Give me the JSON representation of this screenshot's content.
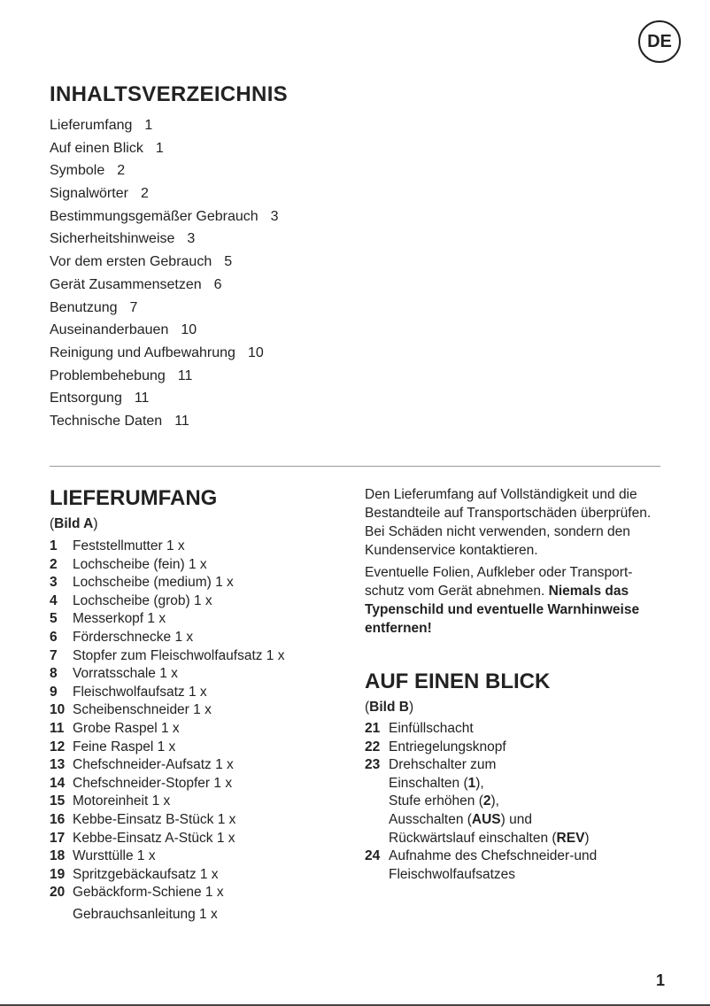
{
  "lang_badge": "DE",
  "toc": {
    "title": "INHALTSVERZEICHNIS",
    "items": [
      {
        "label": "Lieferumfang",
        "page": "1"
      },
      {
        "label": "Auf einen Blick",
        "page": "1"
      },
      {
        "label": "Symbole",
        "page": "2"
      },
      {
        "label": "Signalwörter",
        "page": "2"
      },
      {
        "label": "Bestimmungsgemäßer Gebrauch",
        "page": "3"
      },
      {
        "label": "Sicherheitshinweise",
        "page": "3"
      },
      {
        "label": "Vor dem ersten Gebrauch",
        "page": "5"
      },
      {
        "label": "Gerät Zusammensetzen",
        "page": "6"
      },
      {
        "label": "Benutzung",
        "page": "7"
      },
      {
        "label": "Auseinanderbauen",
        "page": "10"
      },
      {
        "label": "Reinigung und Aufbewahrung",
        "page": "10"
      },
      {
        "label": "Problembehebung",
        "page": "11"
      },
      {
        "label": "Entsorgung",
        "page": "11"
      },
      {
        "label": "Technische Daten",
        "page": "11"
      }
    ]
  },
  "lieferumfang": {
    "title": "LIEFERUMFANG",
    "figure_open": "(",
    "figure": "Bild A",
    "figure_close": ")",
    "items": [
      {
        "n": "1",
        "t": "Feststellmutter 1 x"
      },
      {
        "n": "2",
        "t": "Lochscheibe (fein) 1 x"
      },
      {
        "n": "3",
        "t": "Lochscheibe (medium) 1 x"
      },
      {
        "n": "4",
        "t": "Lochscheibe (grob) 1 x"
      },
      {
        "n": "5",
        "t": "Messerkopf 1 x"
      },
      {
        "n": "6",
        "t": "Förderschnecke 1 x"
      },
      {
        "n": "7",
        "t": "Stopfer zum Fleischwolfaufsatz 1 x"
      },
      {
        "n": "8",
        "t": "Vorratsschale 1 x"
      },
      {
        "n": "9",
        "t": "Fleischwolfaufsatz 1 x"
      },
      {
        "n": "10",
        "t": "Scheibenschneider 1 x"
      },
      {
        "n": "11",
        "t": "Grobe Raspel 1 x"
      },
      {
        "n": "12",
        "t": "Feine Raspel 1 x"
      },
      {
        "n": "13",
        "t": "Chefschneider-Aufsatz 1 x"
      },
      {
        "n": "14",
        "t": "Chefschneider-Stopfer 1 x"
      },
      {
        "n": "15",
        "t": "Motoreinheit 1 x"
      },
      {
        "n": "16",
        "t": "Kebbe-Einsatz B-Stück 1 x"
      },
      {
        "n": "17",
        "t": "Kebbe-Einsatz A-Stück 1 x"
      },
      {
        "n": "18",
        "t": "Wursttülle 1 x"
      },
      {
        "n": "19",
        "t": "Spritzgebäckaufsatz 1 x"
      },
      {
        "n": "20",
        "t": "Gebäckform-Schiene 1 x"
      }
    ],
    "extra": "Gebrauchsanleitung 1 x",
    "para1": "Den Lieferumfang auf Vollständigkeit und die Bestandteile auf Transportschäden überprüfen. Bei Schäden nicht verwenden, sondern den Kundenservice kontaktieren.",
    "para2": "Eventuelle Folien, Aufkleber oder Transport-schutz vom Gerät abnehmen.",
    "para2_bold": "Niemals das Typenschild und eventuelle Warnhinweise entfernen!"
  },
  "blick": {
    "title": "AUF EINEN BLICK",
    "figure_open": "(",
    "figure": "Bild B",
    "figure_close": ")",
    "items": [
      {
        "n": "21",
        "t": "Einfüllschacht"
      },
      {
        "n": "22",
        "t": "Entriegelungsknopf"
      },
      {
        "n": "24",
        "t": "Aufnahme des Chefschneider-und Fleischwolfaufsatzes"
      }
    ],
    "item23": {
      "n": "23",
      "l1": "Drehschalter zum",
      "l2a": "Einschalten (",
      "l2b": "1",
      "l2c": "),",
      "l3a": "Stufe erhöhen (",
      "l3b": "2",
      "l3c": "),",
      "l4a": "Ausschalten (",
      "l4b": "AUS",
      "l4c": ") und",
      "l5a": "Rückwärtslauf einschalten (",
      "l5b": "REV",
      "l5c": ")"
    }
  },
  "page_number": "1"
}
